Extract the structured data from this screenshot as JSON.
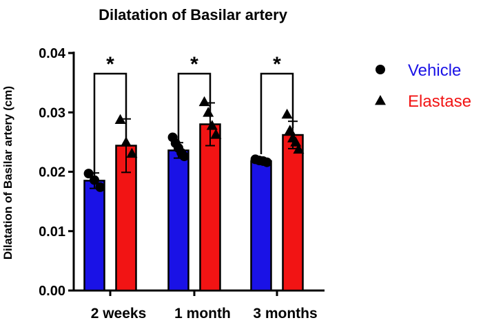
{
  "chart_data": {
    "type": "bar",
    "title": "Dilatation of Basilar artery",
    "xlabel": "",
    "ylabel": "Dilatation of Basilar artery (cm)",
    "ylim": [
      0,
      0.04
    ],
    "yticks": [
      "0.00",
      "0.01",
      "0.02",
      "0.03",
      "0.04"
    ],
    "ytick_values": [
      0,
      0.01,
      0.02,
      0.03,
      0.04
    ],
    "categories": [
      "2 weeks",
      "1 month",
      "3 months"
    ],
    "legend_position": "right",
    "series": [
      {
        "name": "Vehicle",
        "color": "#1a12e6",
        "marker": "circle",
        "values": [
          0.0185,
          0.0236,
          0.0218
        ],
        "sd": [
          0.0013,
          0.0013,
          0.0002
        ],
        "points": [
          [
            0.0197,
            0.0186,
            0.0174
          ],
          [
            0.0258,
            0.0248,
            0.024,
            0.0232,
            0.0226
          ],
          [
            0.0221,
            0.0219,
            0.0218,
            0.0216
          ]
        ]
      },
      {
        "name": "Elastase",
        "color": "#f21414",
        "marker": "triangle",
        "values": [
          0.0244,
          0.028,
          0.0262
        ],
        "sd": [
          0.0045,
          0.0036,
          0.0023
        ],
        "points": [
          [
            0.0288,
            0.025,
            0.0231
          ],
          [
            0.0318,
            0.03,
            0.0278,
            0.0263
          ],
          [
            0.0297,
            0.027,
            0.0257,
            0.025,
            0.0238
          ]
        ]
      }
    ],
    "annotations": [
      {
        "type": "significance",
        "label": "*",
        "category": "2 weeks",
        "y_left": 0.0183,
        "y_right": 0.0244
      },
      {
        "type": "significance",
        "label": "*",
        "category": "1 month",
        "y_left": 0.0236,
        "y_right": 0.028
      },
      {
        "type": "significance",
        "label": "*",
        "category": "3 months",
        "y_left": 0.0218,
        "y_right": 0.0262
      }
    ]
  }
}
